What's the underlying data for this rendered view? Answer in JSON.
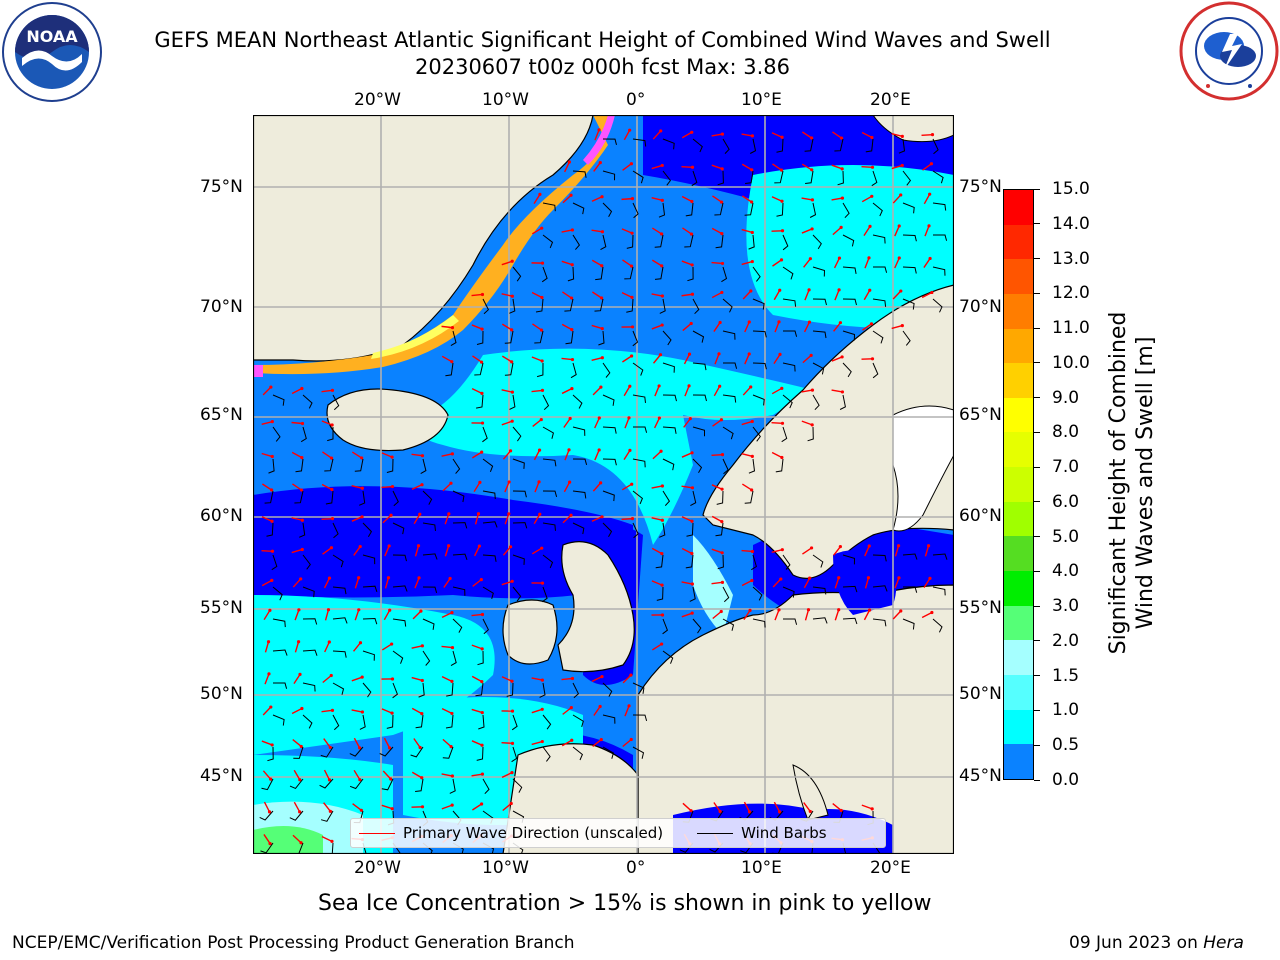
{
  "header": {
    "title_line1": "GEFS MEAN Northeast Atlantic Significant Height of Combined Wind Waves and Swell",
    "title_line2": "20230607 t00z 000h fcst   Max: 3.86"
  },
  "logos": {
    "left": {
      "name": "noaa-logo",
      "text": "NOAA"
    },
    "right": {
      "name": "nws-logo"
    }
  },
  "map": {
    "lon_labels": [
      "20°W",
      "10°W",
      "0°",
      "10°E",
      "20°E"
    ],
    "lat_labels": [
      "75°N",
      "70°N",
      "65°N",
      "60°N",
      "55°N",
      "50°N",
      "45°N"
    ],
    "colors": {
      "land": "#eeecdc",
      "ocean_deep": "#0000ff",
      "ocean_mid": "#0a82ff",
      "ocean_light": "#00ffff",
      "ocean_pale": "#a5ffff",
      "ice_pink": "#ff55ff",
      "ice_orange": "#ffb020",
      "ice_yellow": "#ffff60",
      "arrow": "#ff0000",
      "barb": "#000000",
      "grid": "#b0b0b0"
    }
  },
  "legend": {
    "primary_wave": "Primary Wave Direction (unscaled)",
    "wind_barbs": "Wind Barbs"
  },
  "colorbar": {
    "label_line1": "Significant Height of Combined",
    "label_line2": "Wind Waves and Swell [m]",
    "ticks": [
      "15.0",
      "14.0",
      "13.0",
      "12.0",
      "11.0",
      "10.0",
      "9.0",
      "8.0",
      "7.0",
      "6.0",
      "5.0",
      "4.0",
      "3.0",
      "2.0",
      "1.5",
      "1.0",
      "0.5",
      "0.0"
    ],
    "colors": [
      "#ff0000",
      "#ff2800",
      "#ff5500",
      "#ff7d00",
      "#ffa800",
      "#ffd000",
      "#ffff00",
      "#e6ff00",
      "#ccff00",
      "#a0ff00",
      "#55dd22",
      "#00ee00",
      "#55ff77",
      "#a5ffff",
      "#55ffff",
      "#00ffff",
      "#0a82ff",
      "#0000ff"
    ]
  },
  "caption": "Sea Ice Concentration > 15% is shown in pink to yellow",
  "footer": {
    "left": "NCEP/EMC/Verification Post Processing Product Generation Branch",
    "right_prefix": "09 Jun 2023 on ",
    "right_host": "Hera"
  }
}
